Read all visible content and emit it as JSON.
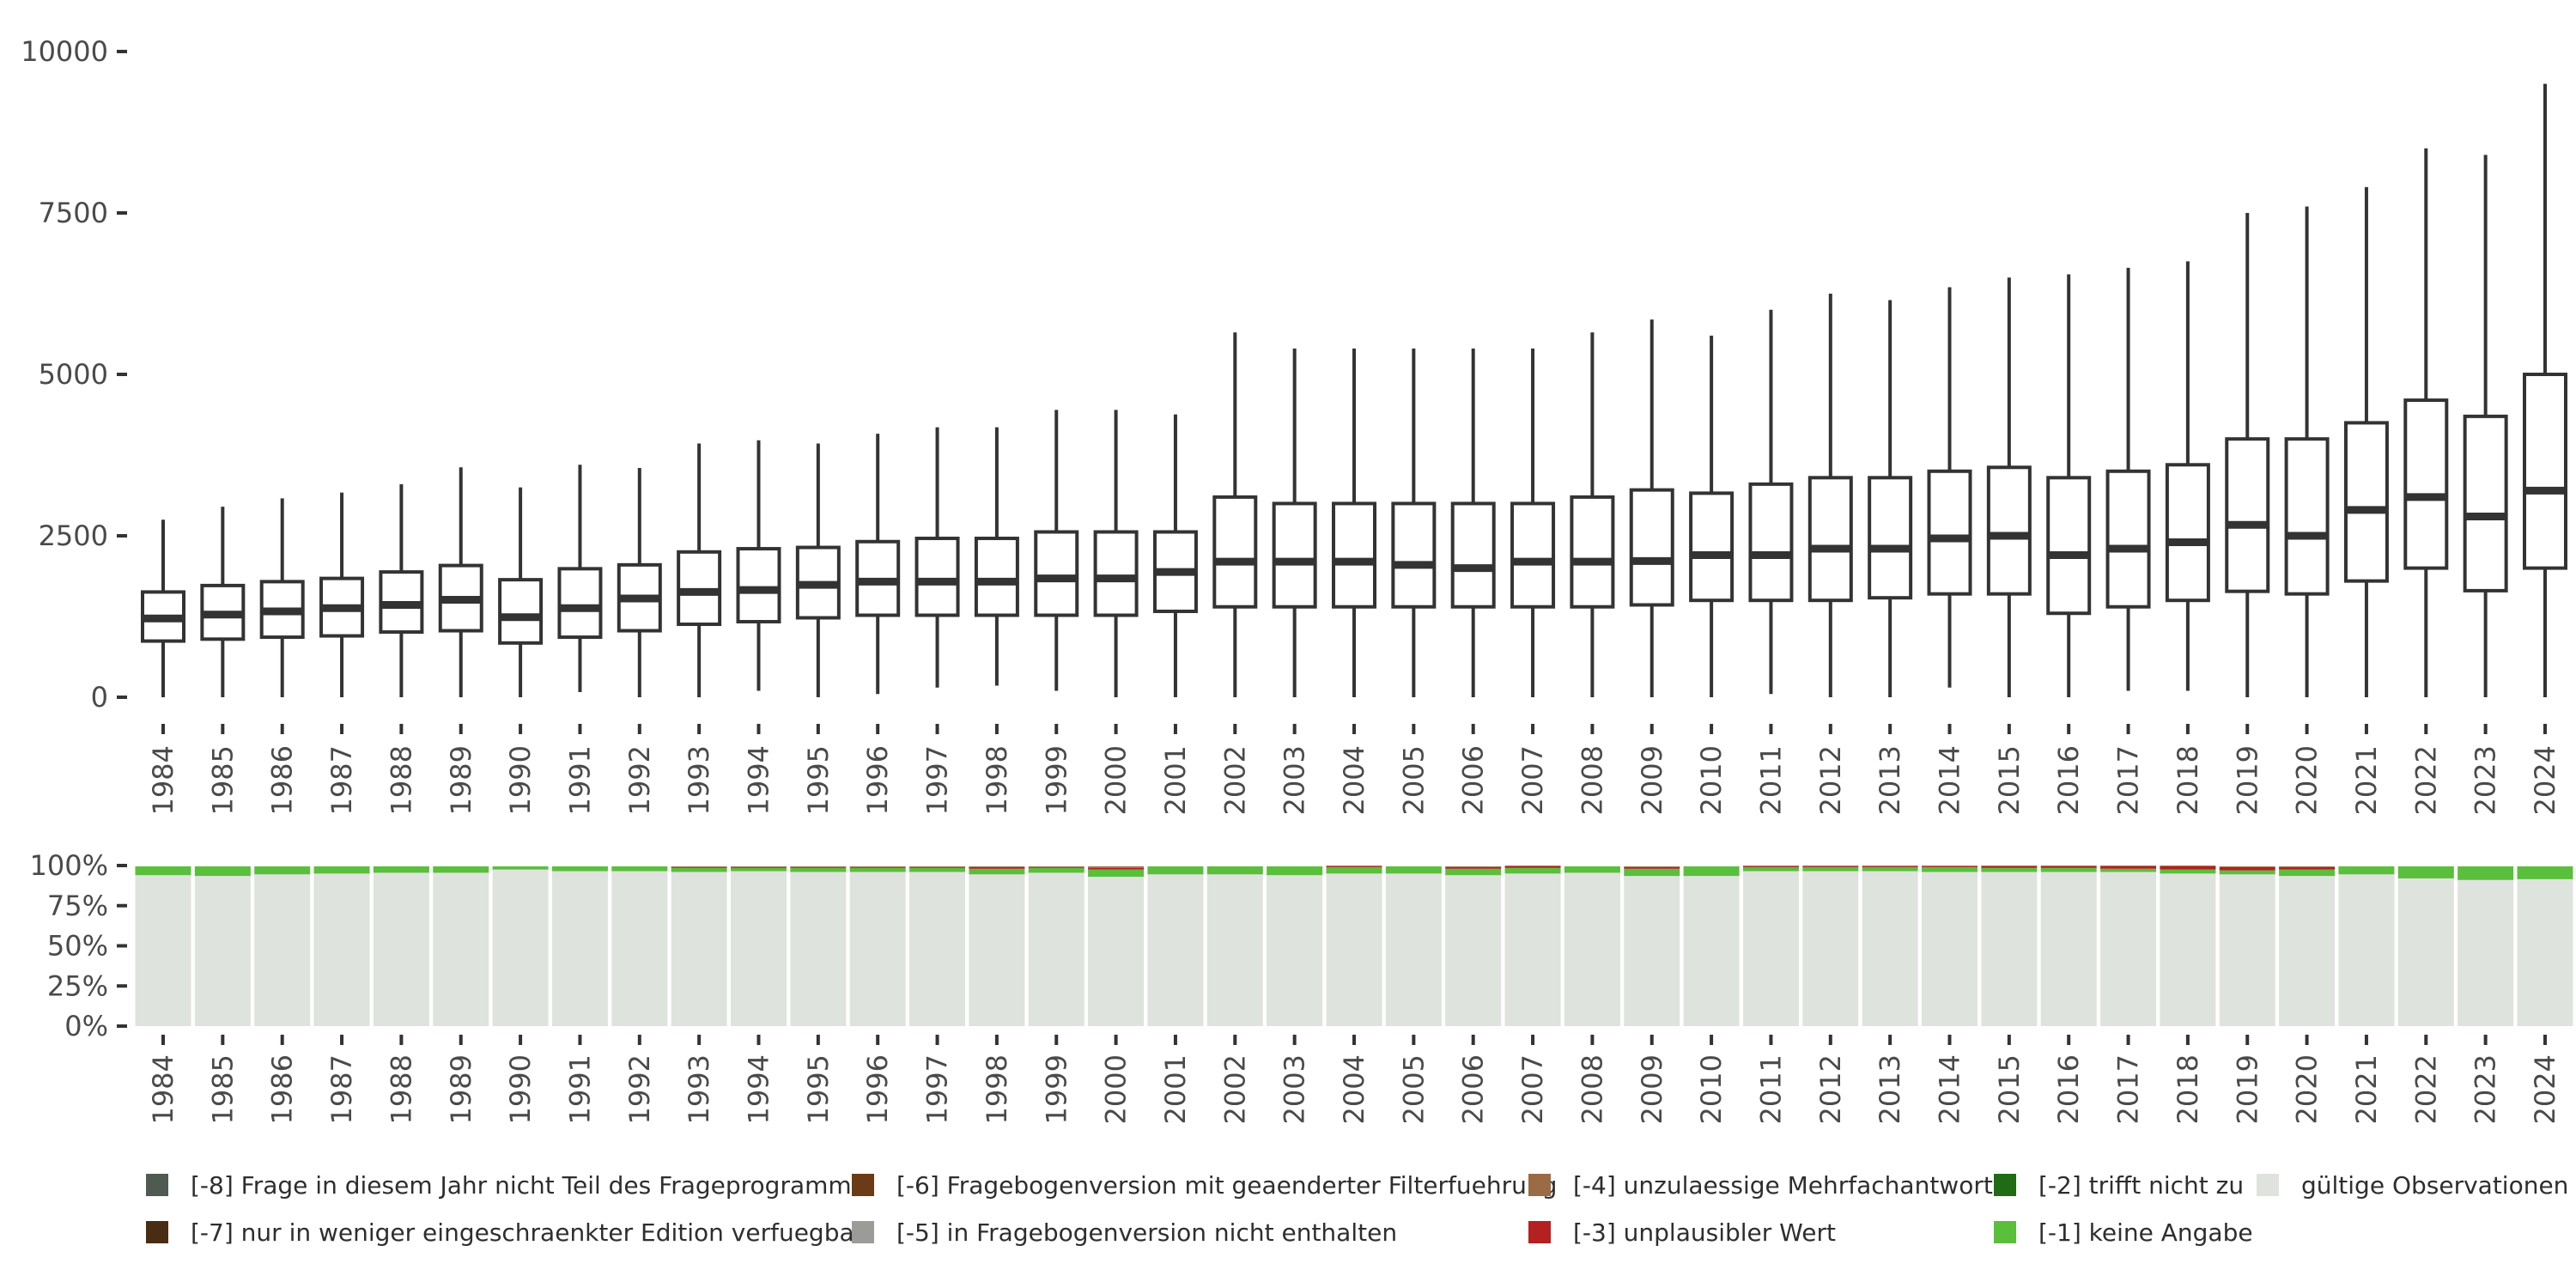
{
  "chart_data": [
    {
      "type": "boxplot",
      "title": "",
      "xlabel": "",
      "ylabel": "",
      "ylim": [
        0,
        10000
      ],
      "yticks": [
        0,
        2500,
        5000,
        7500,
        10000
      ],
      "categories": [
        "1984",
        "1985",
        "1986",
        "1987",
        "1988",
        "1989",
        "1990",
        "1991",
        "1992",
        "1993",
        "1994",
        "1995",
        "1996",
        "1997",
        "1998",
        "1999",
        "2000",
        "2001",
        "2002",
        "2003",
        "2004",
        "2005",
        "2006",
        "2007",
        "2008",
        "2009",
        "2010",
        "2011",
        "2012",
        "2013",
        "2014",
        "2015",
        "2016",
        "2017",
        "2018",
        "2019",
        "2020",
        "2021",
        "2022",
        "2023",
        "2024"
      ],
      "boxes": [
        {
          "whisker_low": 0,
          "q1": 870,
          "median": 1220,
          "q3": 1630,
          "whisker_high": 2750
        },
        {
          "whisker_low": 0,
          "q1": 900,
          "median": 1280,
          "q3": 1730,
          "whisker_high": 2950
        },
        {
          "whisker_low": 0,
          "q1": 930,
          "median": 1330,
          "q3": 1790,
          "whisker_high": 3080
        },
        {
          "whisker_low": 0,
          "q1": 950,
          "median": 1380,
          "q3": 1840,
          "whisker_high": 3170
        },
        {
          "whisker_low": 0,
          "q1": 1010,
          "median": 1430,
          "q3": 1940,
          "whisker_high": 3300
        },
        {
          "whisker_low": 0,
          "q1": 1030,
          "median": 1510,
          "q3": 2040,
          "whisker_high": 3560
        },
        {
          "whisker_low": 0,
          "q1": 840,
          "median": 1240,
          "q3": 1820,
          "whisker_high": 3250
        },
        {
          "whisker_low": 80,
          "q1": 930,
          "median": 1380,
          "q3": 1990,
          "whisker_high": 3600
        },
        {
          "whisker_low": 0,
          "q1": 1030,
          "median": 1530,
          "q3": 2050,
          "whisker_high": 3550
        },
        {
          "whisker_low": 0,
          "q1": 1130,
          "median": 1630,
          "q3": 2250,
          "whisker_high": 3930
        },
        {
          "whisker_low": 100,
          "q1": 1170,
          "median": 1660,
          "q3": 2300,
          "whisker_high": 3980
        },
        {
          "whisker_low": 0,
          "q1": 1230,
          "median": 1740,
          "q3": 2320,
          "whisker_high": 3930
        },
        {
          "whisker_low": 50,
          "q1": 1270,
          "median": 1790,
          "q3": 2410,
          "whisker_high": 4080
        },
        {
          "whisker_low": 150,
          "q1": 1270,
          "median": 1790,
          "q3": 2460,
          "whisker_high": 4180
        },
        {
          "whisker_low": 180,
          "q1": 1270,
          "median": 1790,
          "q3": 2460,
          "whisker_high": 4180
        },
        {
          "whisker_low": 100,
          "q1": 1270,
          "median": 1840,
          "q3": 2560,
          "whisker_high": 4450
        },
        {
          "whisker_low": 0,
          "q1": 1270,
          "median": 1840,
          "q3": 2560,
          "whisker_high": 4450
        },
        {
          "whisker_low": 0,
          "q1": 1330,
          "median": 1940,
          "q3": 2560,
          "whisker_high": 4380
        },
        {
          "whisker_low": 0,
          "q1": 1400,
          "median": 2100,
          "q3": 3100,
          "whisker_high": 5650
        },
        {
          "whisker_low": 0,
          "q1": 1400,
          "median": 2100,
          "q3": 3000,
          "whisker_high": 5400
        },
        {
          "whisker_low": 0,
          "q1": 1400,
          "median": 2100,
          "q3": 3000,
          "whisker_high": 5400
        },
        {
          "whisker_low": 0,
          "q1": 1400,
          "median": 2050,
          "q3": 3000,
          "whisker_high": 5400
        },
        {
          "whisker_low": 0,
          "q1": 1400,
          "median": 2000,
          "q3": 3000,
          "whisker_high": 5400
        },
        {
          "whisker_low": 0,
          "q1": 1400,
          "median": 2100,
          "q3": 3000,
          "whisker_high": 5400
        },
        {
          "whisker_low": 0,
          "q1": 1400,
          "median": 2100,
          "q3": 3100,
          "whisker_high": 5650
        },
        {
          "whisker_low": 0,
          "q1": 1430,
          "median": 2110,
          "q3": 3210,
          "whisker_high": 5850
        },
        {
          "whisker_low": 0,
          "q1": 1500,
          "median": 2200,
          "q3": 3160,
          "whisker_high": 5600
        },
        {
          "whisker_low": 50,
          "q1": 1500,
          "median": 2200,
          "q3": 3300,
          "whisker_high": 6000
        },
        {
          "whisker_low": 0,
          "q1": 1500,
          "median": 2300,
          "q3": 3400,
          "whisker_high": 6250
        },
        {
          "whisker_low": 0,
          "q1": 1540,
          "median": 2300,
          "q3": 3400,
          "whisker_high": 6150
        },
        {
          "whisker_low": 150,
          "q1": 1600,
          "median": 2460,
          "q3": 3500,
          "whisker_high": 6350
        },
        {
          "whisker_low": 0,
          "q1": 1600,
          "median": 2500,
          "q3": 3560,
          "whisker_high": 6500
        },
        {
          "whisker_low": 0,
          "q1": 1300,
          "median": 2200,
          "q3": 3400,
          "whisker_high": 6550
        },
        {
          "whisker_low": 100,
          "q1": 1400,
          "median": 2300,
          "q3": 3500,
          "whisker_high": 6650
        },
        {
          "whisker_low": 100,
          "q1": 1500,
          "median": 2400,
          "q3": 3600,
          "whisker_high": 6750
        },
        {
          "whisker_low": 0,
          "q1": 1640,
          "median": 2670,
          "q3": 4000,
          "whisker_high": 7500
        },
        {
          "whisker_low": 0,
          "q1": 1600,
          "median": 2500,
          "q3": 4000,
          "whisker_high": 7600
        },
        {
          "whisker_low": 0,
          "q1": 1800,
          "median": 2900,
          "q3": 4250,
          "whisker_high": 7900
        },
        {
          "whisker_low": 0,
          "q1": 2000,
          "median": 3100,
          "q3": 4600,
          "whisker_high": 8500
        },
        {
          "whisker_low": 0,
          "q1": 1650,
          "median": 2800,
          "q3": 4350,
          "whisker_high": 8400
        },
        {
          "whisker_low": 0,
          "q1": 2000,
          "median": 3200,
          "q3": 5000,
          "whisker_high": 9500
        }
      ]
    },
    {
      "type": "bar",
      "stacked": true,
      "normalized": true,
      "title": "",
      "xlabel": "",
      "ylabel": "",
      "ylim": [
        0,
        1
      ],
      "yticks": [
        "0%",
        "25%",
        "50%",
        "75%",
        "100%"
      ],
      "categories": [
        "1984",
        "1985",
        "1986",
        "1987",
        "1988",
        "1989",
        "1990",
        "1991",
        "1992",
        "1993",
        "1994",
        "1995",
        "1996",
        "1997",
        "1998",
        "1999",
        "2000",
        "2001",
        "2002",
        "2003",
        "2004",
        "2005",
        "2006",
        "2007",
        "2008",
        "2009",
        "2010",
        "2011",
        "2012",
        "2013",
        "2014",
        "2015",
        "2016",
        "2017",
        "2018",
        "2019",
        "2020",
        "2021",
        "2022",
        "2023",
        "2024"
      ],
      "series": [
        {
          "name": "gültige Observationen",
          "color": "#dfe3dd",
          "values": [
            0.94,
            0.935,
            0.945,
            0.95,
            0.955,
            0.955,
            0.975,
            0.965,
            0.965,
            0.96,
            0.965,
            0.96,
            0.96,
            0.96,
            0.945,
            0.955,
            0.93,
            0.945,
            0.945,
            0.94,
            0.95,
            0.95,
            0.94,
            0.95,
            0.955,
            0.935,
            0.935,
            0.965,
            0.965,
            0.965,
            0.96,
            0.96,
            0.96,
            0.96,
            0.95,
            0.945,
            0.935,
            0.945,
            0.92,
            0.91,
            0.915
          ]
        },
        {
          "name": "[-1] keine Angabe",
          "color": "#5abf3c",
          "values": [
            0.055,
            0.06,
            0.05,
            0.045,
            0.04,
            0.04,
            0.02,
            0.03,
            0.03,
            0.025,
            0.02,
            0.025,
            0.025,
            0.025,
            0.035,
            0.03,
            0.045,
            0.05,
            0.05,
            0.055,
            0.04,
            0.045,
            0.04,
            0.035,
            0.04,
            0.045,
            0.06,
            0.025,
            0.025,
            0.025,
            0.03,
            0.025,
            0.025,
            0.02,
            0.025,
            0.025,
            0.04,
            0.05,
            0.075,
            0.085,
            0.08
          ]
        },
        {
          "name": "[-2] trifft nicht zu",
          "color": "#1f6b16",
          "values": [
            0,
            0,
            0,
            0,
            0,
            0,
            0,
            0,
            0,
            0,
            0,
            0,
            0,
            0,
            0,
            0,
            0,
            0,
            0,
            0,
            0,
            0,
            0,
            0,
            0,
            0,
            0,
            0,
            0,
            0,
            0,
            0,
            0,
            0,
            0,
            0,
            0,
            0,
            0,
            0,
            0
          ]
        },
        {
          "name": "[-3] unplausibler Wert",
          "color": "#b52020",
          "values": [
            0,
            0,
            0,
            0,
            0,
            0,
            0,
            0,
            0,
            0.005,
            0.005,
            0.005,
            0.005,
            0.005,
            0.01,
            0.005,
            0.01,
            0,
            0,
            0,
            0.005,
            0,
            0.01,
            0.01,
            0,
            0.01,
            0,
            0.005,
            0.005,
            0.005,
            0.005,
            0.01,
            0.01,
            0.015,
            0.02,
            0.02,
            0.015,
            0,
            0,
            0,
            0
          ]
        },
        {
          "name": "[-4] unzulaessige Mehrfachantwort",
          "color": "#9a6b44",
          "values": [
            0,
            0,
            0,
            0,
            0,
            0,
            0,
            0,
            0,
            0.005,
            0.005,
            0.005,
            0.005,
            0.005,
            0.005,
            0.005,
            0.01,
            0,
            0,
            0,
            0.005,
            0,
            0.005,
            0.005,
            0,
            0.005,
            0,
            0.005,
            0.005,
            0.005,
            0.005,
            0.005,
            0.005,
            0.005,
            0.005,
            0.005,
            0.005,
            0,
            0,
            0,
            0
          ]
        }
      ]
    }
  ],
  "legend": {
    "items": [
      {
        "label": "[-8] Frage in diesem Jahr nicht Teil des Frageprogramms",
        "color": "#4f5a50"
      },
      {
        "label": "[-7] nur in weniger eingeschraenkter Edition verfuegbar",
        "color": "#4a2c12"
      },
      {
        "label": "[-6] Fragebogenversion mit geaenderter Filterfuehrung",
        "color": "#6b3a17"
      },
      {
        "label": "[-5] in Fragebogenversion nicht enthalten",
        "color": "#9b9b97"
      },
      {
        "label": "[-4] unzulaessige Mehrfachantwort",
        "color": "#9a6b44"
      },
      {
        "label": "[-3] unplausibler Wert",
        "color": "#b52020"
      },
      {
        "label": "[-2] trifft nicht zu",
        "color": "#1f6b16"
      },
      {
        "label": "[-1] keine Angabe",
        "color": "#5abf3c"
      },
      {
        "label": "gültige Observationen",
        "color": "#dfe3dd"
      }
    ]
  }
}
